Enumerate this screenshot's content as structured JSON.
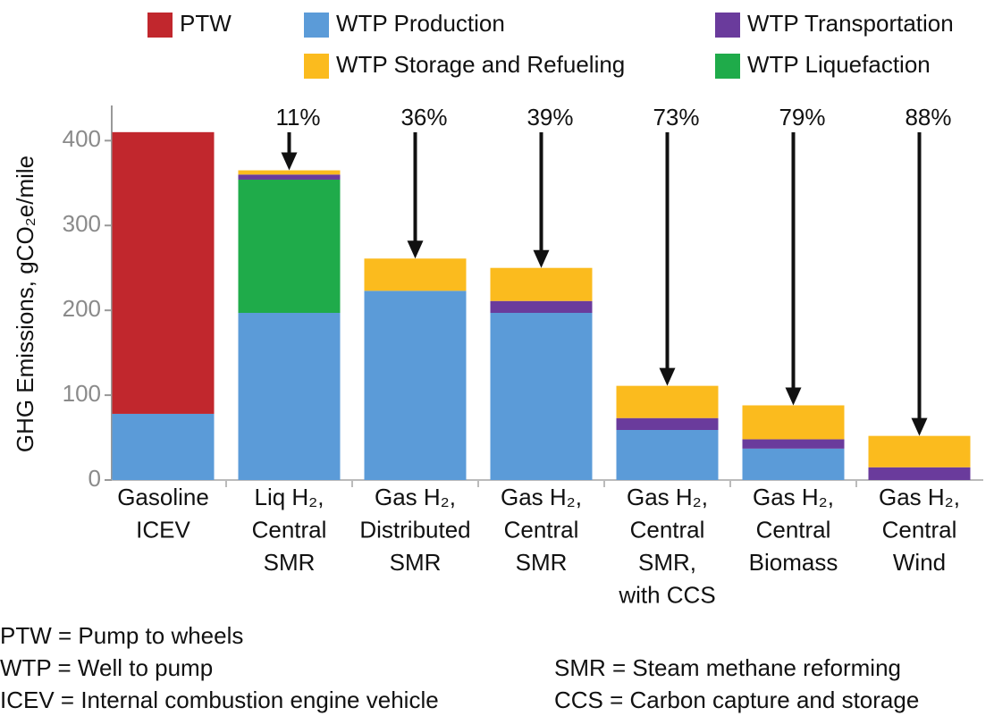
{
  "chart_data": {
    "type": "stacked_bar",
    "y_label": "GHG Emissions, gCO₂e/mile",
    "categories": [
      [
        "Gasoline",
        "ICEV"
      ],
      [
        "Liq H₂,",
        "Central",
        "SMR"
      ],
      [
        "Gas H₂,",
        "Distributed",
        "SMR"
      ],
      [
        "Gas H₂,",
        "Central",
        "SMR"
      ],
      [
        "Gas H₂,",
        "Central",
        "SMR,",
        "with CCS"
      ],
      [
        "Gas H₂,",
        "Central",
        "Biomass"
      ],
      [
        "Gas H₂,",
        "Central",
        "Wind"
      ]
    ],
    "series": [
      {
        "name": "WTP Production",
        "color": "#5b9bd8",
        "values": [
          78,
          197,
          223,
          197,
          59,
          37,
          null
        ]
      },
      {
        "name": "WTP Liquefaction",
        "color": "#1fab4a",
        "values": [
          null,
          157,
          null,
          null,
          null,
          null,
          null
        ]
      },
      {
        "name": "WTP Transportation",
        "color": "#6a3b9c",
        "values": [
          null,
          6,
          null,
          14,
          14,
          11,
          15
        ]
      },
      {
        "name": "WTP Storage and Refueling",
        "color": "#fbbb1e",
        "values": [
          null,
          5,
          38,
          39,
          38,
          40,
          37
        ]
      },
      {
        "name": "PTW",
        "color": "#c1272d",
        "values": [
          332,
          null,
          null,
          null,
          null,
          null,
          null
        ]
      }
    ],
    "annotations": [
      null,
      "11%",
      "36%",
      "39%",
      "73%",
      "79%",
      "88%"
    ],
    "ylim": [
      0,
      433
    ],
    "yticks": [
      0,
      100,
      200,
      300,
      400
    ],
    "notes": {
      "left": [
        "PTW = Pump to wheels",
        "WTP = Well to pump",
        "ICEV = Internal combustion engine vehicle"
      ],
      "right": [
        "SMR = Steam methane reforming",
        "CCS = Carbon capture and storage"
      ]
    }
  }
}
